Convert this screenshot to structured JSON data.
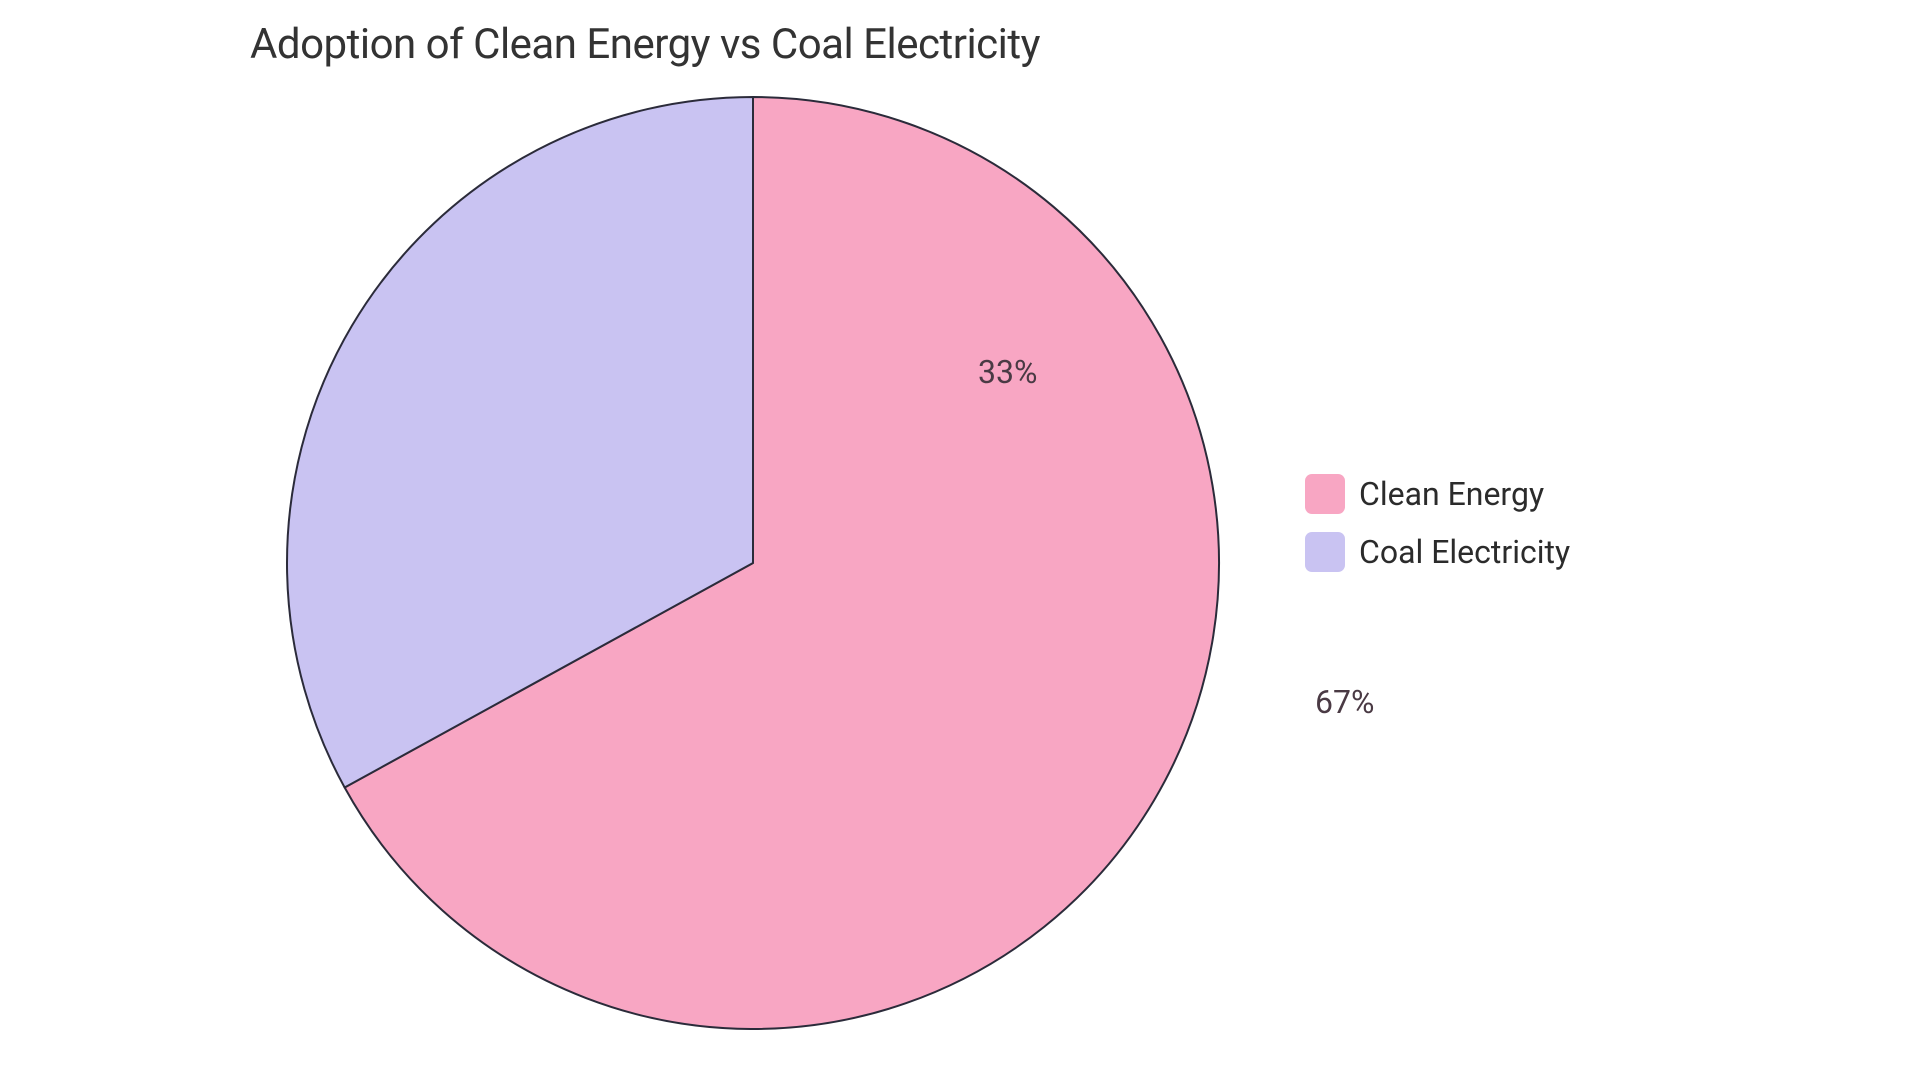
{
  "chart": {
    "type": "pie",
    "title": "Adoption of Clean Energy vs Coal Electricity",
    "title_fontsize": 42,
    "title_color": "#333333",
    "background_color": "#ffffff",
    "stroke_color": "#2b2b3a",
    "stroke_width": 2,
    "label_fontsize": 32,
    "label_color": "#4a3a44",
    "legend_fontsize": 32,
    "legend_label_color": "#2b2b2b",
    "slices": [
      {
        "label": "Clean Energy",
        "value": 67,
        "display": "67%",
        "color": "#f8a6c3"
      },
      {
        "label": "Coal Electricity",
        "value": 33,
        "display": "33%",
        "color": "#c9c3f2"
      }
    ]
  }
}
